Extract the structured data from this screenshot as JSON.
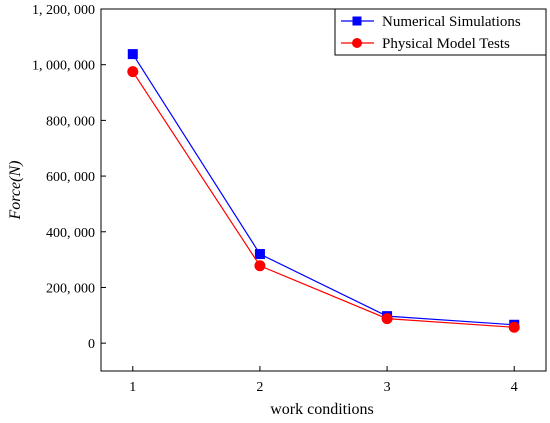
{
  "chart_data": {
    "type": "line",
    "xlabel": "work conditions",
    "ylabel": "Force(N)",
    "xlim": [
      0.75,
      4.25
    ],
    "ylim": [
      -100000,
      1200000
    ],
    "x_ticks": [
      1,
      2,
      3,
      4
    ],
    "x_tick_labels": [
      "1",
      "2",
      "3",
      "4"
    ],
    "y_ticks": [
      0,
      200000,
      400000,
      600000,
      800000,
      1000000,
      1200000
    ],
    "y_tick_labels": [
      "0",
      "200, 000",
      "400, 000",
      "600, 000",
      "800, 000",
      "1, 000, 000",
      "1, 200, 000"
    ],
    "grid": false,
    "legend_position": "top-right",
    "series": [
      {
        "name": "Numerical Simulations",
        "color": "#0000ff",
        "marker": "square",
        "x": [
          1,
          2,
          3,
          4
        ],
        "values": [
          1038000,
          320000,
          97000,
          66000
        ]
      },
      {
        "name": "Physical Model Tests",
        "color": "#ff0000",
        "marker": "circle",
        "x": [
          1,
          2,
          3,
          4
        ],
        "values": [
          975000,
          278000,
          88000,
          57000
        ]
      }
    ]
  }
}
